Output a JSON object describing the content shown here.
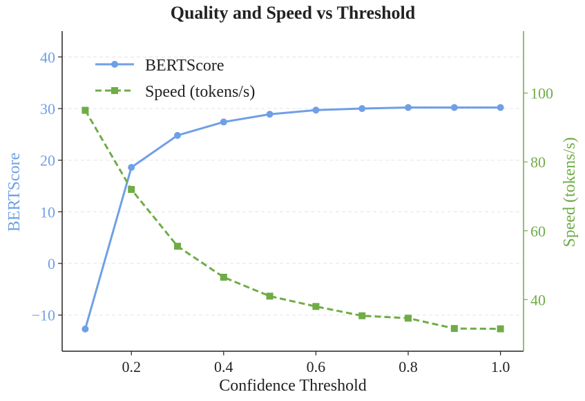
{
  "chart_data": {
    "type": "line",
    "title": "Quality and Speed vs Threshold",
    "xlabel": "Confidence Threshold",
    "xlim": [
      0.05,
      1.05
    ],
    "xticks": [
      0.2,
      0.4,
      0.6,
      0.8,
      1.0
    ],
    "xtick_labels": [
      "0.2",
      "0.4",
      "0.6",
      "0.8",
      "1.0"
    ],
    "grid": true,
    "legend_position": "top-left",
    "left_axis": {
      "label": "BERTScore",
      "color": "#6f9fe6",
      "ylim": [
        -17,
        45
      ],
      "ticks": [
        -10,
        0,
        10,
        20,
        30,
        40
      ],
      "tick_labels": [
        "−10",
        "0",
        "10",
        "20",
        "30",
        "40"
      ]
    },
    "right_axis": {
      "label": "Speed (tokens/s)",
      "color": "#6fac46",
      "ylim": [
        25,
        118
      ],
      "ticks": [
        40,
        60,
        80,
        100
      ],
      "tick_labels": [
        "40",
        "60",
        "80",
        "100"
      ]
    },
    "x": [
      0.1,
      0.2,
      0.3,
      0.4,
      0.5,
      0.6,
      0.7,
      0.8,
      0.9,
      1.0
    ],
    "series": [
      {
        "name": "BERTScore",
        "axis": "left",
        "color": "#6f9fe6",
        "style": "solid",
        "marker": "circle",
        "values": [
          -12.7,
          18.6,
          24.8,
          27.4,
          28.9,
          29.7,
          30.0,
          30.2,
          30.2,
          30.2
        ]
      },
      {
        "name": "Speed (tokens/s)",
        "axis": "right",
        "color": "#6fac46",
        "style": "dashed",
        "marker": "square",
        "values": [
          95.0,
          72.0,
          55.5,
          46.5,
          41.0,
          38.0,
          35.3,
          34.6,
          31.6,
          31.5
        ]
      }
    ]
  }
}
